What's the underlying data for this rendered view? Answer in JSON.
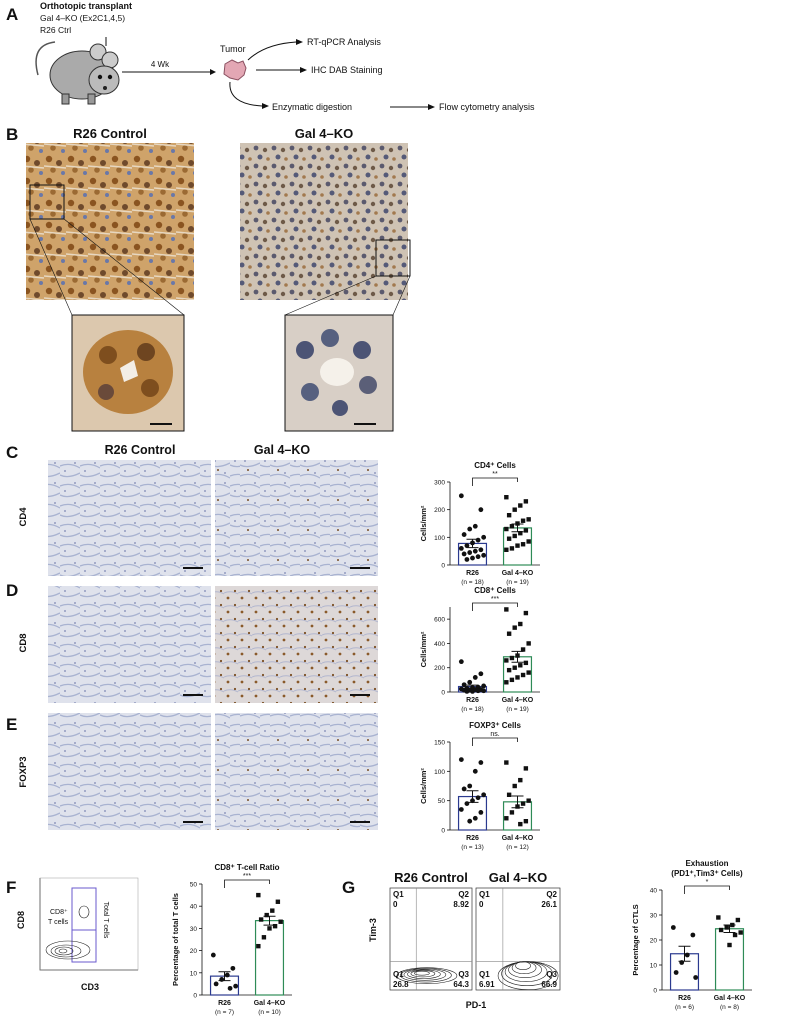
{
  "panel_a": {
    "letter": "A",
    "title": "Orthotopic transplant",
    "groups": [
      "Gal 4–KO (Ex2C1,4,5)",
      "R26 Ctrl"
    ],
    "duration": "4 Wk",
    "tumor": "Tumor",
    "analyses": [
      "RT-qPCR Analysis",
      "IHC DAB Staining",
      "Enzymatic digestion",
      "Flow cytometry analysis"
    ]
  },
  "panel_b": {
    "letter": "B",
    "columns": [
      "R26 Control",
      "Gal 4–KO"
    ]
  },
  "panels_cde": {
    "letters": [
      "C",
      "D",
      "E"
    ],
    "columns": [
      "R26 Control",
      "Gal 4–KO"
    ],
    "rows": [
      "CD4",
      "CD8",
      "FOXP3"
    ]
  },
  "panel_f": {
    "letter": "F",
    "y_axis": "CD8",
    "x_axis": "CD3",
    "gate_label": [
      "CD8⁺",
      "T cells"
    ],
    "total_gate": "Total T cells"
  },
  "panel_g": {
    "letter": "G",
    "columns": [
      "R26 Control",
      "Gal 4–KO"
    ],
    "y_axis": "Tim-3",
    "x_axis": "PD-1",
    "quadrants": [
      [
        {
          "label": "Q1",
          "value": 0
        },
        {
          "label": "Q2",
          "value": 8.92
        },
        {
          "label": "Q1",
          "value": 26.8
        },
        {
          "label": "Q3",
          "value": 64.3
        }
      ],
      [
        {
          "label": "Q1",
          "value": 0
        },
        {
          "label": "Q2",
          "value": 26.1
        },
        {
          "label": "Q1",
          "value": 6.91
        },
        {
          "label": "Q3",
          "value": 66.9
        }
      ]
    ]
  },
  "chart_data": [
    {
      "type": "bar",
      "title": "CD4⁺ Cells",
      "ylabel": "Cells/mm²",
      "categories": [
        "R26",
        "Gal 4–KO"
      ],
      "n_labels": [
        "(n = 18)",
        "(n = 19)"
      ],
      "values": [
        78,
        134
      ],
      "errors": [
        15,
        14
      ],
      "colors": [
        "#2b3a8f",
        "#2e8b57"
      ],
      "markers": [
        "circle",
        "square"
      ],
      "points": [
        [
          250,
          200,
          140,
          130,
          110,
          100,
          90,
          80,
          70,
          60,
          55,
          50,
          45,
          40,
          35,
          30,
          25,
          20
        ],
        [
          245,
          230,
          215,
          200,
          180,
          165,
          160,
          150,
          140,
          130,
          125,
          115,
          105,
          95,
          85,
          75,
          70,
          60,
          55
        ]
      ],
      "ylim": [
        0,
        300
      ],
      "yticks": [
        0,
        100,
        200,
        300
      ],
      "significance": "**"
    },
    {
      "type": "bar",
      "title": "CD8⁺ Cells",
      "ylabel": "Cells/mm²",
      "categories": [
        "R26",
        "Gal 4–KO"
      ],
      "n_labels": [
        "(n = 18)",
        "(n = 19)"
      ],
      "values": [
        45,
        290
      ],
      "errors": [
        12,
        45
      ],
      "colors": [
        "#2b3a8f",
        "#2e8b57"
      ],
      "markers": [
        "circle",
        "square"
      ],
      "points": [
        [
          250,
          150,
          120,
          80,
          60,
          50,
          40,
          35,
          30,
          25,
          20,
          20,
          15,
          15,
          10,
          10,
          5,
          5
        ],
        [
          680,
          650,
          560,
          530,
          480,
          400,
          350,
          300,
          280,
          260,
          240,
          220,
          200,
          180,
          160,
          140,
          120,
          100,
          80
        ]
      ],
      "ylim": [
        0,
        700
      ],
      "yticks": [
        0,
        200,
        400,
        600
      ],
      "significance": "***"
    },
    {
      "type": "bar",
      "title": "FOXP3⁺ Cells",
      "ylabel": "Cells/mm²",
      "categories": [
        "R26",
        "Gal 4–KO"
      ],
      "n_labels": [
        "(n = 13)",
        "(n = 12)"
      ],
      "values": [
        57,
        48
      ],
      "errors": [
        10,
        10
      ],
      "colors": [
        "#2b3a8f",
        "#2e8b57"
      ],
      "markers": [
        "circle",
        "square"
      ],
      "points": [
        [
          120,
          115,
          100,
          75,
          70,
          60,
          55,
          50,
          45,
          35,
          30,
          20,
          15
        ],
        [
          115,
          105,
          85,
          75,
          60,
          50,
          45,
          40,
          30,
          20,
          15,
          10
        ]
      ],
      "ylim": [
        0,
        150
      ],
      "yticks": [
        0,
        50,
        100,
        150
      ],
      "significance": "ns."
    },
    {
      "type": "bar",
      "title": "CD8⁺ T-cell Ratio",
      "ylabel": "Percentage of total T cells",
      "categories": [
        "R26",
        "Gal 4–KO"
      ],
      "n_labels": [
        "(n = 7)",
        "(n = 10)"
      ],
      "values": [
        8.5,
        33.5
      ],
      "errors": [
        2,
        2
      ],
      "colors": [
        "#2b3a8f",
        "#2e8b57"
      ],
      "markers": [
        "circle",
        "square"
      ],
      "points": [
        [
          18,
          12,
          9,
          7,
          5,
          4,
          3
        ],
        [
          45,
          42,
          38,
          36,
          34,
          33,
          31,
          30,
          26,
          22
        ]
      ],
      "ylim": [
        0,
        50
      ],
      "yticks": [
        0,
        10,
        20,
        30,
        40,
        50
      ],
      "significance": "***"
    },
    {
      "type": "bar",
      "title": "Exhaustion",
      "subtitle": "(PD1⁺,Tim3⁺ Cells)",
      "ylabel": "Percentage of CTLS",
      "categories": [
        "R26",
        "Gal 4–KO"
      ],
      "n_labels": [
        "(n = 6)",
        "(n = 8)"
      ],
      "values": [
        14.5,
        24.5
      ],
      "errors": [
        3,
        1.5
      ],
      "colors": [
        "#2b3a8f",
        "#2e8b57"
      ],
      "markers": [
        "circle",
        "square"
      ],
      "points": [
        [
          25,
          22,
          14,
          11,
          7,
          5
        ],
        [
          29,
          28,
          26,
          25,
          24,
          23,
          22,
          18
        ]
      ],
      "ylim": [
        0,
        40
      ],
      "yticks": [
        0,
        10,
        20,
        30,
        40
      ],
      "significance": "*"
    }
  ]
}
